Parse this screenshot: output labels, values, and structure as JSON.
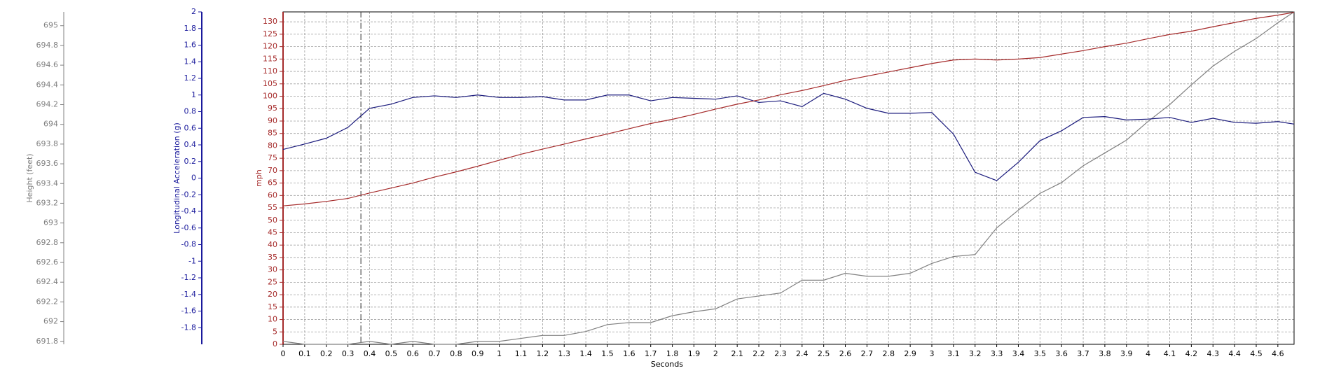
{
  "chart_data": {
    "type": "line",
    "xlabel": "Seconds",
    "x": [
      0,
      0.1,
      0.2,
      0.3,
      0.4,
      0.5,
      0.6,
      0.7,
      0.8,
      0.9,
      1,
      1.1,
      1.2,
      1.3,
      1.4,
      1.5,
      1.6,
      1.7,
      1.8,
      1.9,
      2,
      2.1,
      2.2,
      2.3,
      2.4,
      2.5,
      2.6,
      2.7,
      2.8,
      2.9,
      3,
      3.1,
      3.2,
      3.3,
      3.4,
      3.5,
      3.6,
      3.7,
      3.8,
      3.9,
      4,
      4.1,
      4.2,
      4.3,
      4.4,
      4.5,
      4.6,
      4.675
    ],
    "xlim": [
      0,
      4.675
    ],
    "xticks": [
      0,
      0.1,
      0.2,
      0.3,
      0.4,
      0.5,
      0.6,
      0.7,
      0.8,
      0.9,
      1,
      1.1,
      1.2,
      1.3,
      1.4,
      1.5,
      1.6,
      1.7,
      1.8,
      1.9,
      2,
      2.1,
      2.2,
      2.3,
      2.4,
      2.5,
      2.6,
      2.7,
      2.8,
      2.9,
      3,
      3.1,
      3.2,
      3.3,
      3.4,
      3.5,
      3.6,
      3.7,
      3.8,
      3.9,
      4,
      4.1,
      4.2,
      4.3,
      4.4,
      4.5,
      4.6
    ],
    "grid": true,
    "cursor_x": 0.36,
    "y_axes": [
      {
        "label": "Height (feet)",
        "color": "#808080",
        "ylim": [
          691.77,
          695.14
        ],
        "yticks": [
          691.8,
          692,
          692.2,
          692.4,
          692.6,
          692.8,
          693,
          693.2,
          693.4,
          693.6,
          693.8,
          694,
          694.2,
          694.4,
          694.6,
          694.8,
          695
        ]
      },
      {
        "label": "Longitudinal Acceleration (g)",
        "color": "#1a1a9c",
        "ylim": [
          -2,
          2
        ],
        "yticks": [
          -1.8,
          -1.6,
          -1.4,
          -1.2,
          -1,
          -0.8,
          -0.6,
          -0.4,
          -0.2,
          0,
          0.2,
          0.4,
          0.6,
          0.8,
          1,
          1.2,
          1.4,
          1.6,
          1.8,
          2
        ]
      },
      {
        "label": "mph",
        "color": "#a52a2a",
        "ylim": [
          0,
          134
        ],
        "yticks": [
          0,
          5,
          10,
          15,
          20,
          25,
          30,
          35,
          40,
          45,
          50,
          55,
          60,
          65,
          70,
          75,
          80,
          85,
          90,
          95,
          100,
          105,
          110,
          115,
          120,
          125,
          130
        ]
      }
    ],
    "series": [
      {
        "color": "#808080",
        "axis": 0,
        "values": [
          691.8,
          691.77,
          691.77,
          691.77,
          691.8,
          691.77,
          691.8,
          691.77,
          691.77,
          691.8,
          691.8,
          691.83,
          691.86,
          691.86,
          691.9,
          691.97,
          691.99,
          691.99,
          692.06,
          692.1,
          692.13,
          692.23,
          692.26,
          692.29,
          692.42,
          692.42,
          692.49,
          692.46,
          692.46,
          692.49,
          692.59,
          692.66,
          692.68,
          692.95,
          693.13,
          693.3,
          693.41,
          693.58,
          693.71,
          693.84,
          694.03,
          694.2,
          694.4,
          694.59,
          694.74,
          694.87,
          695.03,
          695.14
        ]
      },
      {
        "color": "#1a1a7c",
        "axis": 1,
        "values": [
          0.345,
          0.41,
          0.48,
          0.61,
          0.84,
          0.89,
          0.97,
          0.99,
          0.97,
          1,
          0.97,
          0.97,
          0.98,
          0.94,
          0.94,
          1,
          1,
          0.93,
          0.97,
          0.96,
          0.95,
          0.99,
          0.91,
          0.93,
          0.86,
          1.02,
          0.95,
          0.84,
          0.78,
          0.78,
          0.79,
          0.53,
          0.07,
          -0.03,
          0.19,
          0.45,
          0.57,
          0.73,
          0.74,
          0.7,
          0.71,
          0.73,
          0.67,
          0.72,
          0.67,
          0.66,
          0.68,
          0.65
        ]
      },
      {
        "color": "#a52a2a",
        "axis": 2,
        "values": [
          55.8,
          56.6,
          57.6,
          58.8,
          61,
          63,
          65,
          67.4,
          69.5,
          71.8,
          74.2,
          76.6,
          78.7,
          80.7,
          82.8,
          84.8,
          86.9,
          89,
          90.7,
          92.7,
          94.8,
          96.8,
          98.5,
          100.6,
          102.3,
          104.3,
          106.4,
          108.1,
          109.8,
          111.5,
          113.2,
          114.6,
          115,
          114.6,
          115,
          115.6,
          117,
          118.4,
          120,
          121.4,
          123.2,
          124.9,
          126.2,
          128,
          129.7,
          131.4,
          132.7,
          133.8
        ]
      }
    ]
  }
}
